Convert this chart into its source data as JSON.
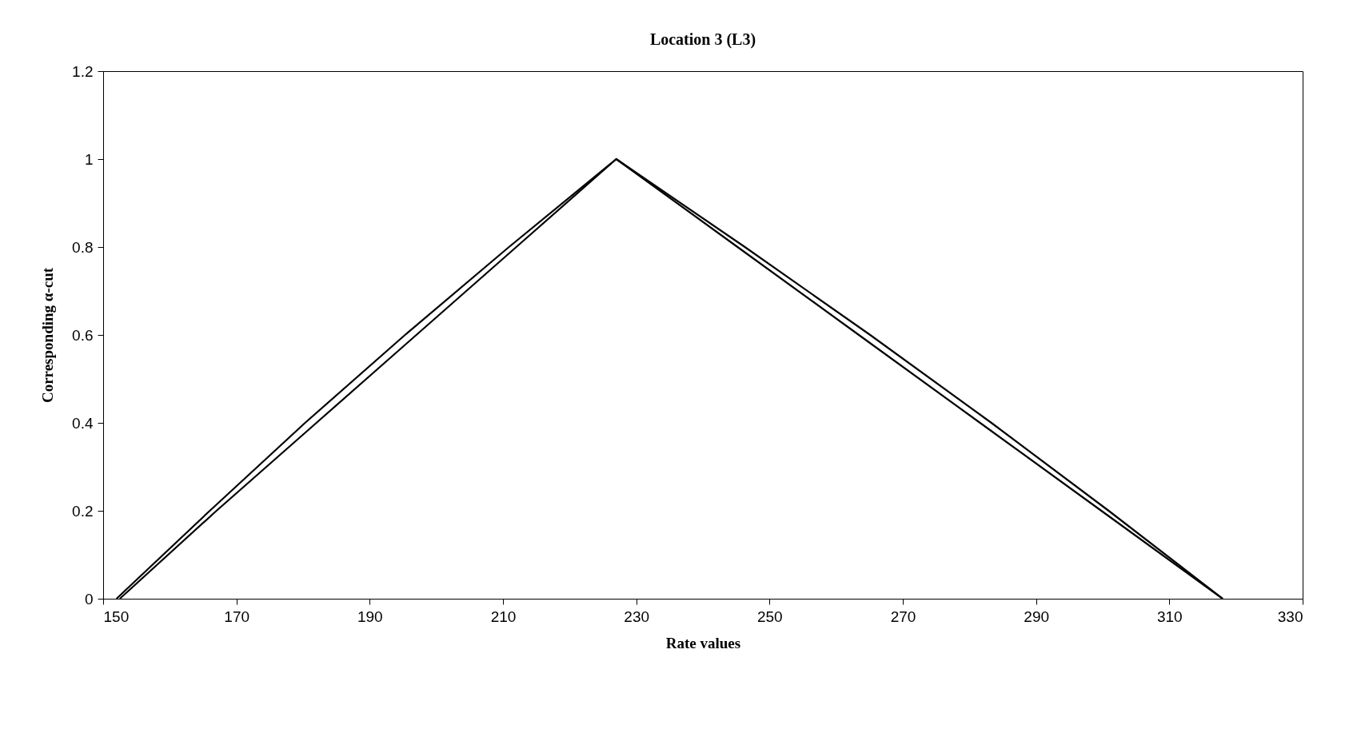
{
  "chart_data": {
    "type": "line",
    "title": "Location 3 (L3)",
    "xlabel": "Rate values",
    "ylabel": "Corresponding α-cut",
    "series": [
      {
        "color": "#000000",
        "x": [
          152,
          166,
          180.3,
          195.3,
          210.9,
          227,
          246.3,
          265.1,
          283.3,
          300.9,
          318
        ],
        "values": [
          0,
          0.2,
          0.4,
          0.6,
          0.8,
          1,
          0.8,
          0.6,
          0.4,
          0.2,
          0
        ]
      },
      {
        "color": "#000000",
        "x": [
          152.5,
          167,
          182,
          197,
          212,
          227,
          245.2,
          263.4,
          281.6,
          299.8,
          318
        ],
        "values": [
          0,
          0.2,
          0.4,
          0.6,
          0.8,
          1,
          0.8,
          0.6,
          0.4,
          0.2,
          0
        ]
      }
    ],
    "xlim": [
      150,
      330
    ],
    "xticks": [
      150,
      170,
      190,
      210,
      230,
      250,
      270,
      290,
      310,
      330
    ],
    "ylim": [
      0,
      1.2
    ],
    "yticks": [
      0,
      0.2,
      0.4,
      0.6,
      0.8,
      1,
      1.2
    ],
    "grid": false,
    "legend": false,
    "marker": "none",
    "line_style": "solid"
  }
}
